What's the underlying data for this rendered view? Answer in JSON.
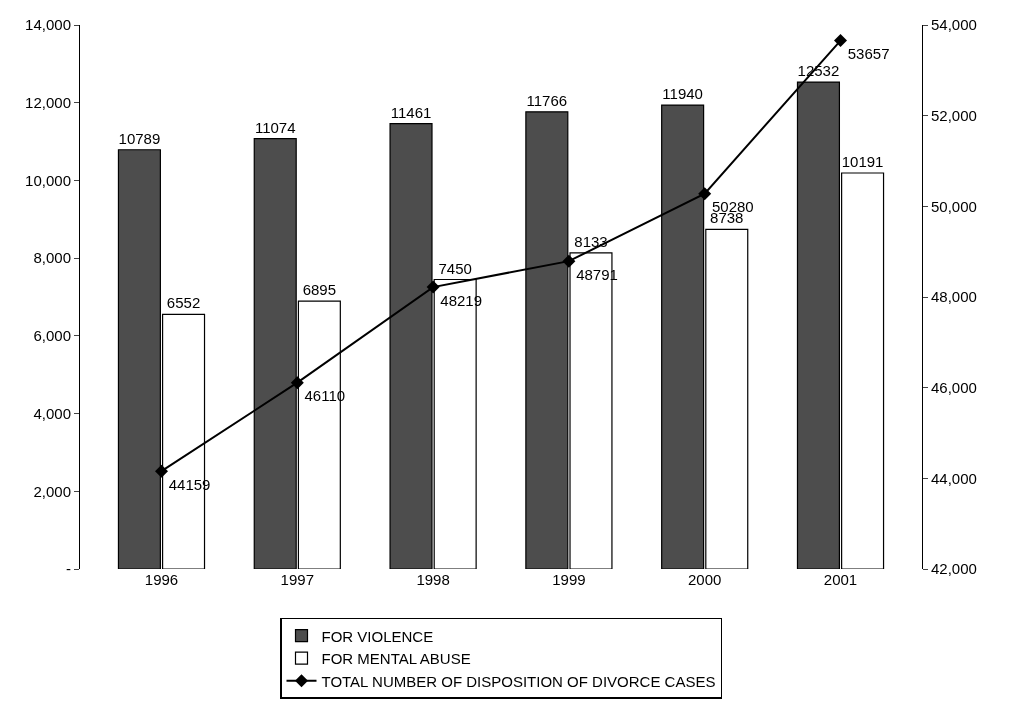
{
  "chart_data": {
    "type": "bar",
    "categories": [
      "1996",
      "1997",
      "1998",
      "1999",
      "2000",
      "2001"
    ],
    "series": [
      {
        "name": "FOR VIOLENCE",
        "color": "#4d4d4d",
        "values": [
          10789,
          11074,
          11461,
          11766,
          11940,
          12532
        ]
      },
      {
        "name": "FOR MENTAL ABUSE",
        "color": "#ffffff",
        "values": [
          6552,
          6895,
          7450,
          8133,
          8738,
          10191
        ]
      },
      {
        "name": "TOTAL NUMBER OF DISPOSITION OF DIVORCE CASES",
        "type": "line",
        "axis": "y2",
        "color": "#000000",
        "values": [
          44159,
          46110,
          48219,
          48791,
          50280,
          53657
        ]
      }
    ],
    "ylim": [
      0,
      14000
    ],
    "yticks": [
      {
        "value": 0,
        "label": "-"
      },
      {
        "value": 2000,
        "label": "2,000"
      },
      {
        "value": 4000,
        "label": "4,000"
      },
      {
        "value": 6000,
        "label": "6,000"
      },
      {
        "value": 8000,
        "label": "8,000"
      },
      {
        "value": 10000,
        "label": "10,000"
      },
      {
        "value": 12000,
        "label": "12,000"
      },
      {
        "value": 14000,
        "label": "14,000"
      }
    ],
    "y2lim": [
      42000,
      54000
    ],
    "y2ticks": [
      {
        "value": 42000,
        "label": "42,000"
      },
      {
        "value": 44000,
        "label": "44,000"
      },
      {
        "value": 46000,
        "label": "46,000"
      },
      {
        "value": 48000,
        "label": "48,000"
      },
      {
        "value": 50000,
        "label": "50,000"
      },
      {
        "value": 52000,
        "label": "52,000"
      },
      {
        "value": 54000,
        "label": "54,000"
      }
    ],
    "data_labels": true,
    "legend": "bottom",
    "marker": "diamond"
  }
}
